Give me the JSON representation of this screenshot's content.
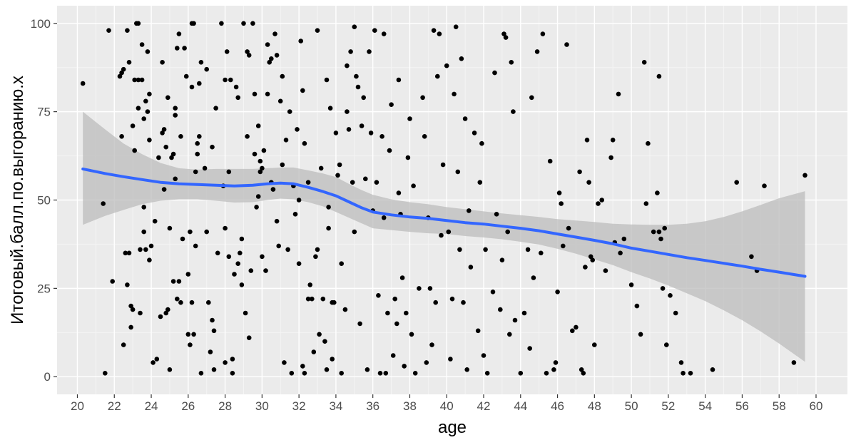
{
  "chart_data": {
    "type": "scatter",
    "xlabel": "age",
    "ylabel": "Итоговый.балл.по.выгоранию.x",
    "xlim": [
      18.9,
      61.7
    ],
    "ylim": [
      -5,
      105
    ],
    "x_ticks": [
      20,
      22,
      24,
      26,
      28,
      30,
      32,
      34,
      36,
      38,
      40,
      42,
      44,
      46,
      48,
      50,
      52,
      54,
      56,
      58,
      60
    ],
    "y_ticks": [
      0,
      25,
      50,
      75,
      100
    ],
    "grid": true,
    "colors": {
      "panel": "#ebebeb",
      "grid_major": "#ffffff",
      "grid_minor": "#f4f4f4",
      "points": "#000000",
      "smooth_line": "#3366ff",
      "confidence_band": "#bcbcbc",
      "tick": "#333333"
    },
    "points": [
      [
        20.3,
        83
      ],
      [
        21.4,
        49
      ],
      [
        21.5,
        1
      ],
      [
        21.7,
        98
      ],
      [
        21.9,
        27
      ],
      [
        22.3,
        85
      ],
      [
        22.4,
        68
      ],
      [
        22.4,
        86
      ],
      [
        22.5,
        87
      ],
      [
        22.5,
        9
      ],
      [
        22.6,
        35
      ],
      [
        22.7,
        26
      ],
      [
        22.7,
        98
      ],
      [
        22.8,
        35
      ],
      [
        22.8,
        89
      ],
      [
        22.9,
        20
      ],
      [
        22.9,
        14
      ],
      [
        23.0,
        19
      ],
      [
        23.0,
        71
      ],
      [
        23.1,
        64
      ],
      [
        23.1,
        84
      ],
      [
        23.2,
        100
      ],
      [
        23.3,
        100
      ],
      [
        23.3,
        84
      ],
      [
        23.3,
        76
      ],
      [
        23.4,
        18
      ],
      [
        23.4,
        36
      ],
      [
        23.5,
        84
      ],
      [
        23.5,
        94
      ],
      [
        23.6,
        73
      ],
      [
        23.6,
        41
      ],
      [
        23.6,
        48
      ],
      [
        23.7,
        36
      ],
      [
        23.7,
        78
      ],
      [
        23.8,
        92
      ],
      [
        23.8,
        75
      ],
      [
        23.9,
        67
      ],
      [
        23.9,
        80
      ],
      [
        23.9,
        33
      ],
      [
        24.0,
        37
      ],
      [
        24.1,
        4
      ],
      [
        24.2,
        44
      ],
      [
        24.3,
        5
      ],
      [
        24.4,
        62
      ],
      [
        24.5,
        17
      ],
      [
        24.6,
        89
      ],
      [
        24.6,
        69
      ],
      [
        24.7,
        70
      ],
      [
        24.7,
        53
      ],
      [
        24.8,
        18
      ],
      [
        24.8,
        65
      ],
      [
        24.9,
        19
      ],
      [
        24.9,
        79
      ],
      [
        25.0,
        2
      ],
      [
        25.0,
        42
      ],
      [
        25.1,
        62
      ],
      [
        25.2,
        27
      ],
      [
        25.2,
        63
      ],
      [
        25.3,
        74
      ],
      [
        25.3,
        76
      ],
      [
        25.3,
        56
      ],
      [
        25.4,
        93
      ],
      [
        25.4,
        22
      ],
      [
        25.5,
        97
      ],
      [
        25.5,
        27
      ],
      [
        25.6,
        68
      ],
      [
        25.6,
        21
      ],
      [
        25.7,
        39
      ],
      [
        25.8,
        93
      ],
      [
        25.9,
        85
      ],
      [
        26.0,
        29
      ],
      [
        26.0,
        12
      ],
      [
        26.1,
        9
      ],
      [
        26.1,
        41
      ],
      [
        26.2,
        21
      ],
      [
        26.2,
        100
      ],
      [
        26.2,
        82
      ],
      [
        26.3,
        12
      ],
      [
        26.3,
        100
      ],
      [
        26.4,
        58
      ],
      [
        26.4,
        37
      ],
      [
        26.5,
        63
      ],
      [
        26.5,
        66
      ],
      [
        26.6,
        68
      ],
      [
        26.6,
        83
      ],
      [
        26.7,
        1
      ],
      [
        26.7,
        89
      ],
      [
        26.9,
        59
      ],
      [
        27.0,
        41
      ],
      [
        27.0,
        87
      ],
      [
        27.1,
        21
      ],
      [
        27.2,
        7
      ],
      [
        27.3,
        65
      ],
      [
        27.3,
        16
      ],
      [
        27.4,
        2
      ],
      [
        27.4,
        13
      ],
      [
        27.5,
        76
      ],
      [
        27.6,
        35
      ],
      [
        27.8,
        100
      ],
      [
        27.9,
        54
      ],
      [
        28.0,
        4
      ],
      [
        28.0,
        42
      ],
      [
        28.0,
        84
      ],
      [
        28.1,
        92
      ],
      [
        28.2,
        58
      ],
      [
        28.2,
        34
      ],
      [
        28.3,
        84
      ],
      [
        28.4,
        1
      ],
      [
        28.4,
        5
      ],
      [
        28.5,
        29
      ],
      [
        28.6,
        82
      ],
      [
        28.7,
        79
      ],
      [
        28.7,
        32
      ],
      [
        28.8,
        35
      ],
      [
        28.9,
        39
      ],
      [
        28.9,
        26
      ],
      [
        29.0,
        100
      ],
      [
        29.1,
        18
      ],
      [
        29.2,
        92
      ],
      [
        29.2,
        68
      ],
      [
        29.3,
        11
      ],
      [
        29.3,
        91
      ],
      [
        29.4,
        30
      ],
      [
        29.5,
        100
      ],
      [
        29.6,
        63
      ],
      [
        29.6,
        80
      ],
      [
        29.7,
        48
      ],
      [
        29.8,
        51
      ],
      [
        29.8,
        71
      ],
      [
        29.9,
        61
      ],
      [
        29.9,
        58
      ],
      [
        30.0,
        59
      ],
      [
        30.0,
        34
      ],
      [
        30.1,
        64
      ],
      [
        30.2,
        30
      ],
      [
        30.3,
        94
      ],
      [
        30.3,
        80
      ],
      [
        30.4,
        89
      ],
      [
        30.5,
        90
      ],
      [
        30.5,
        55
      ],
      [
        30.6,
        53
      ],
      [
        30.7,
        97
      ],
      [
        30.8,
        44
      ],
      [
        30.8,
        91
      ],
      [
        30.9,
        37
      ],
      [
        31.0,
        78
      ],
      [
        31.1,
        60
      ],
      [
        31.1,
        85
      ],
      [
        31.2,
        4
      ],
      [
        31.3,
        67
      ],
      [
        31.4,
        36
      ],
      [
        31.5,
        75
      ],
      [
        31.6,
        1
      ],
      [
        31.7,
        54
      ],
      [
        31.8,
        46
      ],
      [
        31.9,
        70
      ],
      [
        32.0,
        50
      ],
      [
        32.0,
        32
      ],
      [
        32.1,
        95
      ],
      [
        32.2,
        3
      ],
      [
        32.2,
        81
      ],
      [
        32.3,
        66
      ],
      [
        32.3,
        1
      ],
      [
        32.5,
        22
      ],
      [
        32.5,
        55
      ],
      [
        32.6,
        26
      ],
      [
        32.7,
        22
      ],
      [
        32.8,
        7
      ],
      [
        32.9,
        34
      ],
      [
        33.0,
        98
      ],
      [
        33.0,
        36
      ],
      [
        33.1,
        12
      ],
      [
        33.2,
        59
      ],
      [
        33.3,
        22
      ],
      [
        33.4,
        10
      ],
      [
        33.5,
        84
      ],
      [
        33.5,
        2
      ],
      [
        33.6,
        48
      ],
      [
        33.6,
        42
      ],
      [
        33.7,
        76
      ],
      [
        33.8,
        21
      ],
      [
        33.8,
        5
      ],
      [
        33.9,
        21
      ],
      [
        34.0,
        69
      ],
      [
        34.1,
        57
      ],
      [
        34.2,
        60
      ],
      [
        34.3,
        1
      ],
      [
        34.3,
        32
      ],
      [
        34.5,
        19
      ],
      [
        34.6,
        88
      ],
      [
        34.6,
        75
      ],
      [
        34.7,
        70
      ],
      [
        34.8,
        92
      ],
      [
        34.9,
        55
      ],
      [
        35.0,
        99
      ],
      [
        35.0,
        41
      ],
      [
        35.1,
        85
      ],
      [
        35.2,
        82
      ],
      [
        35.3,
        15
      ],
      [
        35.4,
        71
      ],
      [
        35.5,
        79
      ],
      [
        35.6,
        56
      ],
      [
        35.7,
        2
      ],
      [
        35.8,
        92
      ],
      [
        35.9,
        69
      ],
      [
        36.0,
        47
      ],
      [
        36.1,
        98
      ],
      [
        36.2,
        55
      ],
      [
        36.3,
        23
      ],
      [
        36.4,
        1
      ],
      [
        36.5,
        68
      ],
      [
        36.6,
        45
      ],
      [
        36.6,
        97
      ],
      [
        36.7,
        1
      ],
      [
        36.8,
        18
      ],
      [
        36.9,
        64
      ],
      [
        37.0,
        77
      ],
      [
        37.1,
        6
      ],
      [
        37.2,
        22
      ],
      [
        37.3,
        15
      ],
      [
        37.4,
        52
      ],
      [
        37.4,
        84
      ],
      [
        37.5,
        46
      ],
      [
        37.6,
        28
      ],
      [
        37.7,
        3
      ],
      [
        37.8,
        18
      ],
      [
        37.9,
        62
      ],
      [
        38.0,
        73
      ],
      [
        38.1,
        12
      ],
      [
        38.2,
        54
      ],
      [
        38.3,
        1
      ],
      [
        38.5,
        25
      ],
      [
        38.7,
        79
      ],
      [
        38.8,
        68
      ],
      [
        38.9,
        4
      ],
      [
        39.0,
        45
      ],
      [
        39.1,
        25
      ],
      [
        39.2,
        9
      ],
      [
        39.3,
        98
      ],
      [
        39.4,
        21
      ],
      [
        39.5,
        85
      ],
      [
        39.6,
        97
      ],
      [
        39.7,
        40
      ],
      [
        39.8,
        60
      ],
      [
        40.0,
        88
      ],
      [
        40.1,
        41
      ],
      [
        40.2,
        5
      ],
      [
        40.3,
        22
      ],
      [
        40.4,
        80
      ],
      [
        40.5,
        99
      ],
      [
        40.6,
        58
      ],
      [
        40.7,
        36
      ],
      [
        40.8,
        90
      ],
      [
        40.9,
        21
      ],
      [
        41.0,
        73
      ],
      [
        41.1,
        2
      ],
      [
        41.2,
        47
      ],
      [
        41.3,
        31
      ],
      [
        41.5,
        69
      ],
      [
        41.7,
        13
      ],
      [
        41.8,
        55
      ],
      [
        41.9,
        66
      ],
      [
        42.0,
        6
      ],
      [
        42.1,
        36
      ],
      [
        42.2,
        1
      ],
      [
        42.5,
        24
      ],
      [
        42.6,
        86
      ],
      [
        42.7,
        46
      ],
      [
        42.9,
        19
      ],
      [
        43.0,
        33
      ],
      [
        43.1,
        97
      ],
      [
        43.2,
        96
      ],
      [
        43.3,
        41
      ],
      [
        43.4,
        12
      ],
      [
        43.5,
        89
      ],
      [
        43.6,
        75
      ],
      [
        43.7,
        16
      ],
      [
        44.0,
        1
      ],
      [
        44.2,
        18
      ],
      [
        44.4,
        36
      ],
      [
        44.5,
        8
      ],
      [
        44.6,
        79
      ],
      [
        44.7,
        28
      ],
      [
        44.9,
        92
      ],
      [
        45.1,
        35
      ],
      [
        45.2,
        97
      ],
      [
        45.4,
        1
      ],
      [
        45.6,
        61
      ],
      [
        45.8,
        2
      ],
      [
        45.9,
        4
      ],
      [
        46.0,
        24
      ],
      [
        46.1,
        52
      ],
      [
        46.2,
        49
      ],
      [
        46.3,
        37
      ],
      [
        46.5,
        94
      ],
      [
        46.6,
        42
      ],
      [
        46.8,
        13
      ],
      [
        47.0,
        14
      ],
      [
        47.2,
        58
      ],
      [
        47.3,
        2
      ],
      [
        47.4,
        1
      ],
      [
        47.5,
        31
      ],
      [
        47.6,
        67
      ],
      [
        47.7,
        55
      ],
      [
        47.8,
        34
      ],
      [
        47.9,
        33
      ],
      [
        48.0,
        9
      ],
      [
        48.2,
        49
      ],
      [
        48.4,
        50
      ],
      [
        48.6,
        30
      ],
      [
        48.9,
        62
      ],
      [
        49.0,
        67
      ],
      [
        49.1,
        38
      ],
      [
        49.3,
        80
      ],
      [
        49.4,
        35
      ],
      [
        49.6,
        39
      ],
      [
        50.0,
        26
      ],
      [
        50.3,
        20
      ],
      [
        50.5,
        12
      ],
      [
        50.7,
        89
      ],
      [
        50.8,
        49
      ],
      [
        50.9,
        66
      ],
      [
        51.2,
        41
      ],
      [
        51.4,
        52
      ],
      [
        51.5,
        41
      ],
      [
        51.5,
        85
      ],
      [
        51.6,
        39
      ],
      [
        51.7,
        25
      ],
      [
        51.8,
        42
      ],
      [
        51.9,
        9
      ],
      [
        52.1,
        23
      ],
      [
        52.4,
        18
      ],
      [
        52.7,
        4
      ],
      [
        52.8,
        1
      ],
      [
        53.2,
        1
      ],
      [
        54.4,
        2
      ],
      [
        55.7,
        55
      ],
      [
        56.5,
        34
      ],
      [
        56.8,
        30
      ],
      [
        57.2,
        54
      ],
      [
        58.8,
        4
      ],
      [
        59.4,
        57
      ]
    ],
    "smooth_line": [
      [
        20.3,
        58.8
      ],
      [
        21.5,
        57.5
      ],
      [
        22.5,
        56.6
      ],
      [
        23.5,
        55.8
      ],
      [
        24.5,
        55.0
      ],
      [
        25.5,
        54.6
      ],
      [
        26.5,
        54.4
      ],
      [
        27.5,
        54.2
      ],
      [
        28.5,
        54.0
      ],
      [
        29.5,
        54.2
      ],
      [
        30.3,
        54.6
      ],
      [
        31.0,
        54.8
      ],
      [
        31.7,
        54.6
      ],
      [
        32.5,
        53.6
      ],
      [
        33.3,
        52.4
      ],
      [
        34.0,
        51.2
      ],
      [
        34.7,
        49.5
      ],
      [
        35.4,
        47.8
      ],
      [
        36.0,
        46.6
      ],
      [
        37.0,
        45.8
      ],
      [
        38.0,
        45.2
      ],
      [
        39.0,
        44.8
      ],
      [
        40.0,
        44.2
      ],
      [
        41.0,
        43.6
      ],
      [
        42.0,
        43.2
      ],
      [
        43.0,
        42.6
      ],
      [
        44.0,
        42.0
      ],
      [
        45.0,
        41.3
      ],
      [
        46.0,
        40.4
      ],
      [
        47.0,
        39.5
      ],
      [
        48.0,
        38.6
      ],
      [
        49.0,
        37.6
      ],
      [
        50.0,
        36.4
      ],
      [
        51.0,
        35.5
      ],
      [
        52.0,
        34.6
      ],
      [
        53.0,
        33.7
      ],
      [
        54.0,
        32.9
      ],
      [
        55.0,
        32.1
      ],
      [
        56.0,
        31.3
      ],
      [
        57.0,
        30.4
      ],
      [
        58.0,
        29.6
      ],
      [
        59.4,
        28.4
      ]
    ],
    "confidence_band": {
      "x": [
        20.3,
        21.5,
        22.5,
        23.5,
        24.5,
        25.5,
        26.5,
        27.5,
        28.5,
        29.5,
        30.3,
        31.0,
        31.7,
        32.5,
        33.3,
        34.0,
        34.7,
        35.4,
        36.0,
        37.0,
        38.0,
        39.0,
        40.0,
        41.0,
        42.0,
        43.0,
        44.0,
        45.0,
        46.0,
        47.0,
        48.0,
        49.0,
        50.0,
        51.0,
        52.0,
        53.0,
        54.0,
        55.0,
        56.0,
        57.0,
        58.0,
        59.4
      ],
      "upper": [
        75.0,
        70.0,
        66.0,
        63.0,
        60.5,
        59.0,
        58.6,
        58.8,
        58.8,
        58.8,
        59.0,
        59.2,
        59.2,
        58.4,
        57.5,
        56.5,
        54.6,
        52.8,
        51.5,
        50.2,
        49.4,
        48.8,
        48.0,
        47.4,
        46.8,
        46.2,
        45.7,
        45.2,
        44.6,
        44.2,
        43.8,
        43.3,
        43.1,
        43.0,
        43.0,
        43.3,
        44.0,
        45.2,
        46.8,
        48.6,
        50.5,
        52.5
      ],
      "lower": [
        43.0,
        45.5,
        47.2,
        48.8,
        49.8,
        50.2,
        50.2,
        49.8,
        49.3,
        49.4,
        50.0,
        50.4,
        50.2,
        49.4,
        48.2,
        46.6,
        45.0,
        43.4,
        42.0,
        41.5,
        41.0,
        40.6,
        40.4,
        39.8,
        39.4,
        38.9,
        38.2,
        37.4,
        36.2,
        34.8,
        33.2,
        31.6,
        29.6,
        27.8,
        25.8,
        23.6,
        21.4,
        18.8,
        16.0,
        12.8,
        9.4,
        4.2
      ]
    }
  }
}
